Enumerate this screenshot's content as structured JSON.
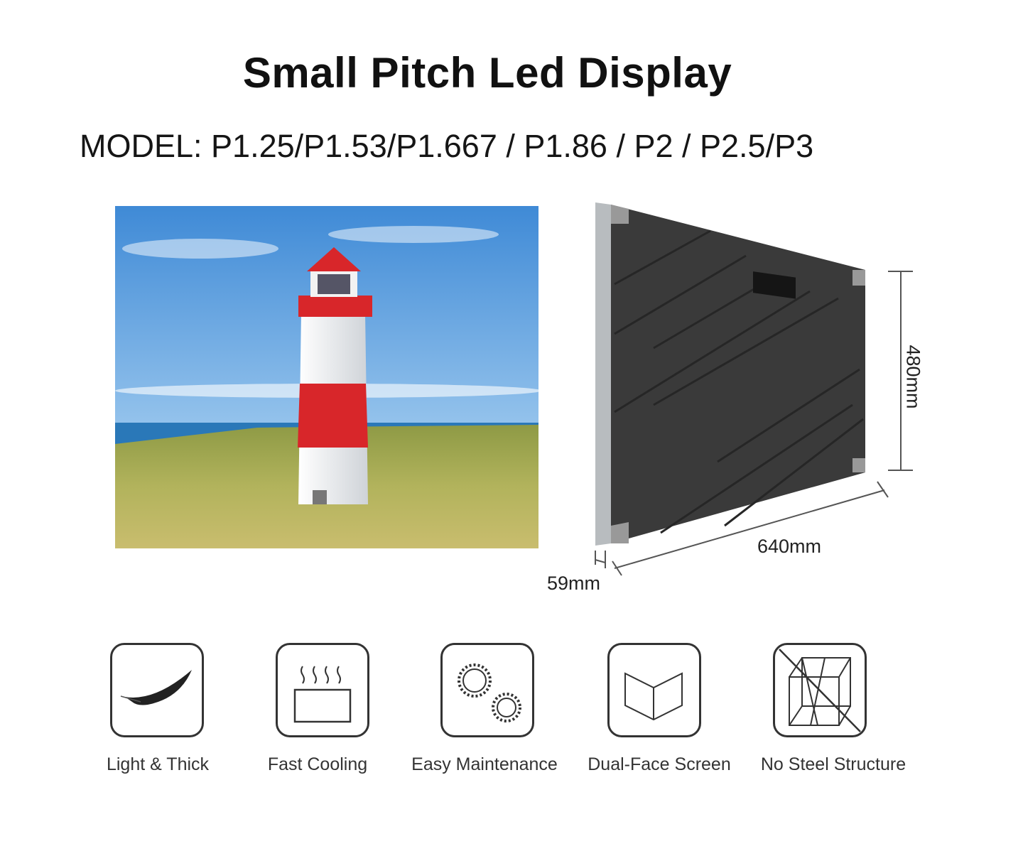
{
  "title": "Small Pitch Led Display",
  "model": "MODEL: P1.25/P1.53/P1.667 / P1.86 / P2 / P2.5/P3",
  "dimensions": {
    "height": "480mm",
    "width": "640mm",
    "depth": "59mm"
  },
  "features": [
    {
      "label": "Light & Thick",
      "icon": "feather-icon"
    },
    {
      "label": "Fast Cooling",
      "icon": "heat-dissipation-icon"
    },
    {
      "label": "Easy Maintenance",
      "icon": "gears-icon"
    },
    {
      "label": "Dual-Face Screen",
      "icon": "open-book-icon"
    },
    {
      "label": "No Steel Structure",
      "icon": "crossed-frame-icon"
    }
  ],
  "colors": {
    "lighthouse_red": "#d8262a",
    "panel": "#3a3a3a",
    "sky": "#5fa4e0",
    "grass": "#a9ad55"
  }
}
